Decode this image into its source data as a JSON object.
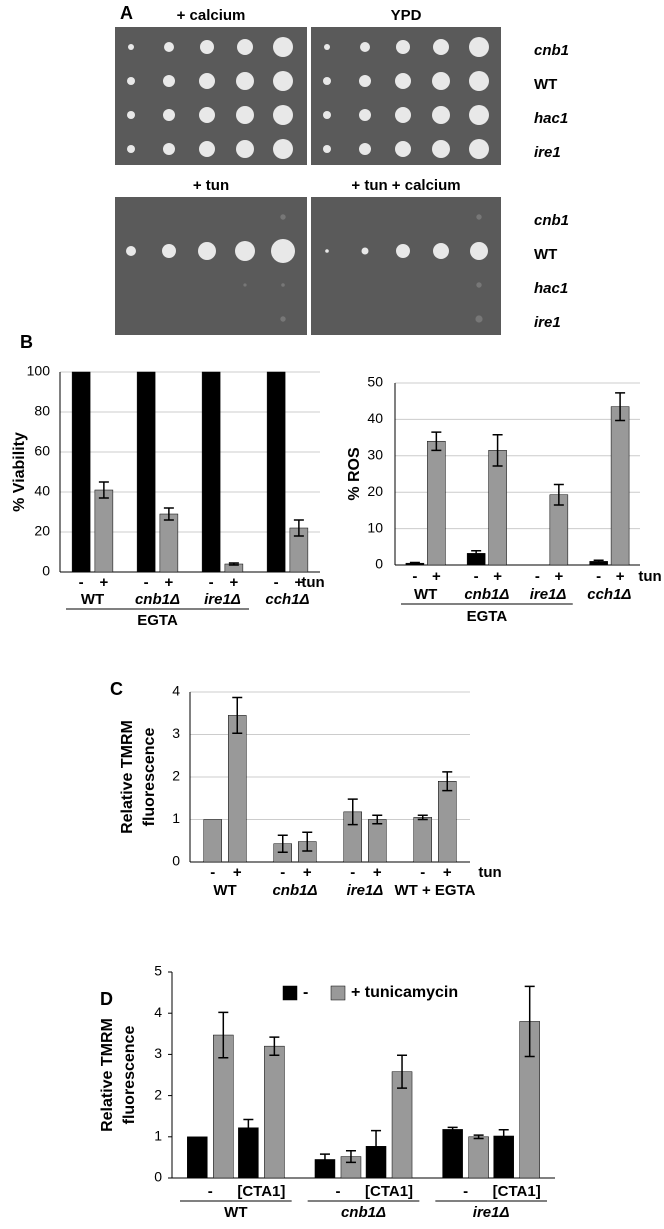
{
  "panel_a": {
    "label": "A",
    "plates": [
      {
        "title": "+ calcium"
      },
      {
        "title": "YPD"
      },
      {
        "title": "+ tun"
      },
      {
        "title": "+ tun + calcium"
      }
    ],
    "strains_top": [
      "cnb1",
      "WT",
      "hac1",
      "ire1"
    ],
    "strains_bottom": [
      "cnb1",
      "WT",
      "hac1",
      "ire1"
    ]
  },
  "chart_data": [
    {
      "type": "bar",
      "panel": "B",
      "ylabel": [
        "% Viability"
      ],
      "categories": [
        "-",
        "+",
        "-",
        "+",
        "-",
        "+",
        "-",
        "+"
      ],
      "groups": [
        "WT",
        "cnb1Δ",
        "ire1Δ",
        "cch1Δ"
      ],
      "condition": "tun",
      "bracket_label": "EGTA",
      "values": [
        100,
        41,
        100,
        29,
        100,
        4,
        100,
        22
      ],
      "errors": [
        null,
        4,
        null,
        3,
        null,
        0.5,
        null,
        4
      ],
      "colors": [
        "#000000",
        "#999999",
        "#000000",
        "#999999",
        "#000000",
        "#999999",
        "#000000",
        "#999999"
      ],
      "ylim": [
        0,
        100
      ],
      "yticks": [
        0,
        20,
        40,
        60,
        80,
        100
      ],
      "grid": true
    },
    {
      "type": "bar",
      "ylabel": [
        "% ROS"
      ],
      "categories": [
        "-",
        "+",
        "-",
        "+",
        "-",
        "+",
        "-",
        "+"
      ],
      "groups": [
        "WT",
        "cnb1Δ",
        "ire1Δ",
        "cch1Δ"
      ],
      "condition": "tun",
      "bracket_label": "EGTA",
      "values": [
        0.5,
        34,
        3.2,
        31.5,
        null,
        19.3,
        1,
        43.5
      ],
      "errors": [
        0.2,
        2.5,
        0.7,
        4.3,
        null,
        2.8,
        0.3,
        3.8
      ],
      "colors": [
        "#000000",
        "#999999",
        "#000000",
        "#999999",
        "#000000",
        "#999999",
        "#000000",
        "#999999"
      ],
      "ylim": [
        0,
        50
      ],
      "yticks": [
        0,
        10,
        20,
        30,
        40,
        50
      ],
      "grid": true
    },
    {
      "type": "bar",
      "panel": "C",
      "ylabel": [
        "Relative TMRM",
        "fluorescence"
      ],
      "categories": [
        "-",
        "+",
        "-",
        "+",
        "-",
        "+",
        "-",
        "+"
      ],
      "groups": [
        "WT",
        "cnb1Δ",
        "ire1Δ",
        "WT + EGTA"
      ],
      "condition": "tun",
      "values": [
        1,
        3.45,
        0.43,
        0.48,
        1.18,
        1.0,
        1.05,
        1.9
      ],
      "errors": [
        null,
        0.42,
        0.2,
        0.22,
        0.3,
        0.1,
        0.05,
        0.22
      ],
      "color": "#999999",
      "ylim": [
        0,
        4
      ],
      "yticks": [
        0,
        1,
        2,
        3,
        4
      ],
      "grid": true
    },
    {
      "type": "grouped_bar",
      "panel": "D",
      "ylabel": [
        "Relative TMRM",
        "fluorescence"
      ],
      "categories": [
        "-",
        "[CTA1]",
        "-",
        "[CTA1]",
        "-",
        "[CTA1]"
      ],
      "groups": [
        "WT",
        "cnb1Δ",
        "ire1Δ"
      ],
      "series": [
        {
          "name": "-",
          "color": "#000000",
          "values": [
            1.0,
            1.22,
            0.45,
            0.77,
            1.18,
            1.02
          ],
          "errors": [
            null,
            0.2,
            0.13,
            0.38,
            0.05,
            0.15
          ]
        },
        {
          "name": "+ tunicamycin",
          "color": "#999999",
          "values": [
            3.47,
            3.2,
            0.52,
            2.58,
            1.0,
            3.8
          ],
          "errors": [
            0.55,
            0.22,
            0.14,
            0.4,
            0.04,
            0.85
          ]
        }
      ],
      "ylim": [
        0,
        5
      ],
      "yticks": [
        0,
        1,
        2,
        3,
        4,
        5
      ],
      "grid": false
    }
  ]
}
